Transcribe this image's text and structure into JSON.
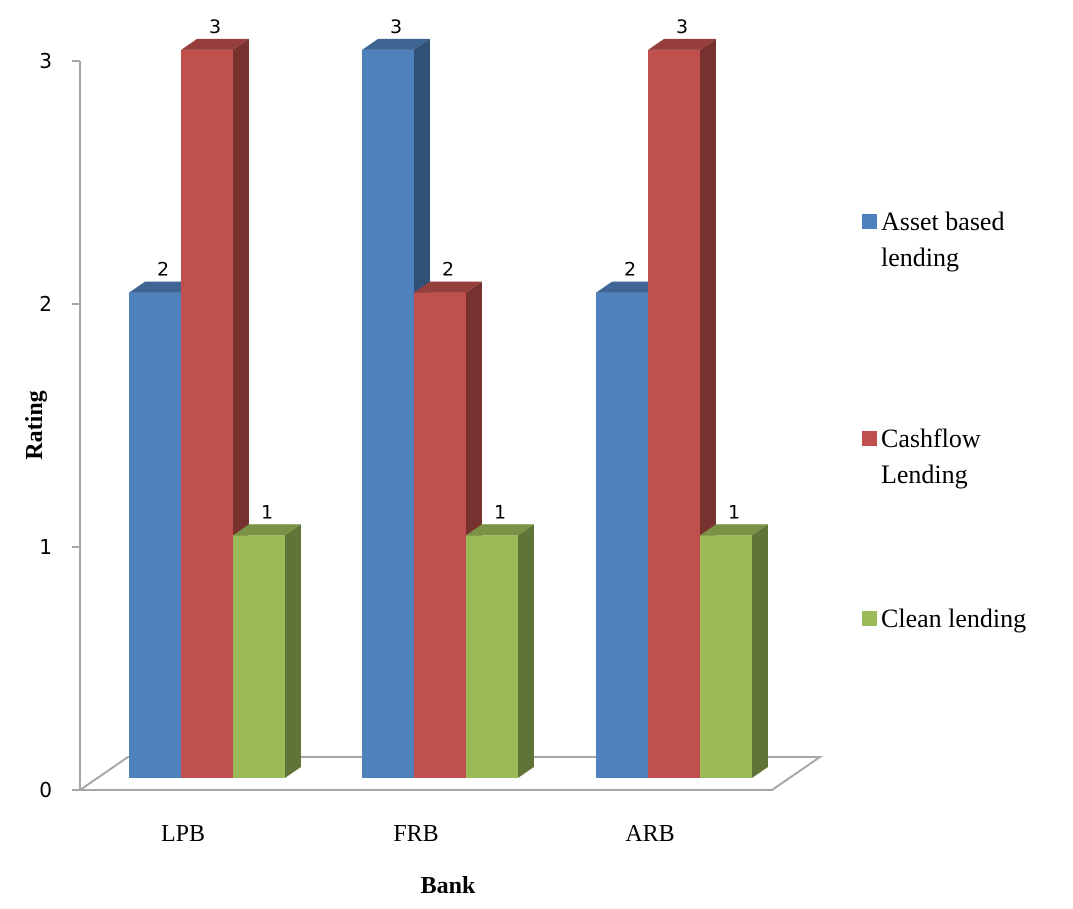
{
  "chart_data": {
    "type": "bar",
    "categories": [
      "LPB",
      "FRB",
      "ARB"
    ],
    "series": [
      {
        "name": "Asset based lending",
        "legend_lines": [
          "Asset based",
          "lending"
        ],
        "values": [
          2,
          3,
          2
        ],
        "color": "#4F81BD"
      },
      {
        "name": "Cashflow Lending",
        "legend_lines": [
          "Cashflow",
          "Lending"
        ],
        "values": [
          3,
          2,
          3
        ],
        "color": "#C0504D"
      },
      {
        "name": "Clean lending",
        "legend_lines": [
          "Clean lending"
        ],
        "values": [
          1,
          1,
          1
        ],
        "color": "#9BBB59"
      }
    ],
    "xlabel": "Bank",
    "ylabel": "Rating",
    "ylim": [
      0,
      3
    ],
    "yticks": [
      0,
      1,
      2,
      3
    ],
    "grid": false,
    "legend_position": "right",
    "data_labels": true,
    "style": "3d-column"
  }
}
